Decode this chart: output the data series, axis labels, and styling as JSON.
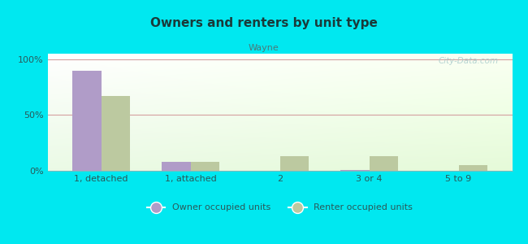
{
  "title": "Owners and renters by unit type",
  "subtitle": "Wayne",
  "categories": [
    "1, detached",
    "1, attached",
    "2",
    "3 or 4",
    "5 to 9"
  ],
  "owner_values": [
    90,
    8,
    0,
    1,
    0
  ],
  "renter_values": [
    67,
    8,
    13,
    13,
    5
  ],
  "owner_color": "#b09cc8",
  "renter_color": "#bcc9a0",
  "background_color": "#00e8f0",
  "title_color": "#1a3a3a",
  "subtitle_color": "#4a7a7a",
  "yticks": [
    0,
    50,
    100
  ],
  "ytick_labels": [
    "0%",
    "50%",
    "100%"
  ],
  "watermark": "City-Data.com",
  "bar_width": 0.32,
  "legend_owner": "Owner occupied units",
  "legend_renter": "Renter occupied units",
  "grid_color": "#d4a0a0",
  "tick_label_color": "#2a5a5a"
}
